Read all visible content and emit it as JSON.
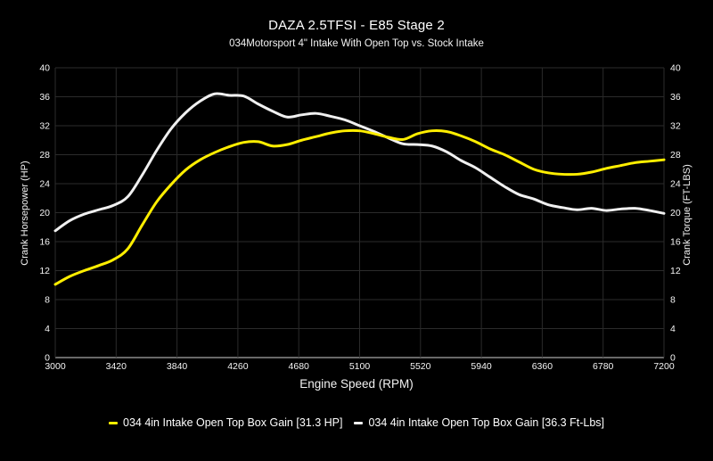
{
  "chart_data": {
    "type": "line",
    "title": "DAZA 2.5TFSI - E85 Stage 2",
    "subtitle": "034Motorsport 4\" Intake With Open Top vs. Stock Intake",
    "xlabel": "Engine Speed (RPM)",
    "ylabel_left": "Crank Horsepower (HP)",
    "ylabel_right": "Crank Torque (FT-LBS)",
    "xlim": [
      3000,
      7200
    ],
    "ylim": [
      0,
      40
    ],
    "x_ticks": [
      3000,
      3420,
      3840,
      4260,
      4680,
      5100,
      5520,
      5940,
      6360,
      6780,
      7200
    ],
    "y_ticks": [
      0,
      4,
      8,
      12,
      16,
      20,
      24,
      28,
      32,
      36,
      40
    ],
    "grid": true,
    "legend_position": "bottom",
    "colors": {
      "background": "#000000",
      "grid": "#2b2b2b",
      "axis": "#8c8c8c",
      "text": "#f5f5f5",
      "series_hp": "#ffee00",
      "series_tq": "#f0f0f0"
    },
    "x": [
      3000,
      3100,
      3200,
      3300,
      3400,
      3500,
      3600,
      3700,
      3800,
      3900,
      4000,
      4100,
      4200,
      4300,
      4400,
      4500,
      4600,
      4700,
      4800,
      4900,
      5000,
      5100,
      5200,
      5300,
      5400,
      5500,
      5600,
      5700,
      5800,
      5900,
      6000,
      6100,
      6200,
      6300,
      6400,
      6500,
      6600,
      6700,
      6800,
      6900,
      7000,
      7100,
      7200
    ],
    "series": [
      {
        "name": "034 4in Intake Open Top Box Gain [31.3 HP]",
        "peak_label": "31.3 HP",
        "color": "#ffee00",
        "axis": "left",
        "values": [
          10.1,
          11.2,
          12.0,
          12.7,
          13.5,
          15.0,
          18.3,
          21.5,
          23.9,
          25.9,
          27.3,
          28.3,
          29.1,
          29.7,
          29.8,
          29.2,
          29.4,
          30.0,
          30.5,
          31.0,
          31.3,
          31.3,
          30.9,
          30.4,
          30.1,
          30.9,
          31.3,
          31.2,
          30.6,
          29.8,
          28.8,
          28.0,
          27.0,
          26.0,
          25.5,
          25.3,
          25.3,
          25.6,
          26.1,
          26.5,
          26.9,
          27.1,
          27.3
        ]
      },
      {
        "name": "034 4in Intake Open Top Box Gain [36.3 Ft-Lbs]",
        "peak_label": "36.3 Ft-Lbs",
        "color": "#f0f0f0",
        "axis": "right",
        "values": [
          17.5,
          18.9,
          19.8,
          20.4,
          21.0,
          22.2,
          25.2,
          28.6,
          31.6,
          33.8,
          35.4,
          36.4,
          36.2,
          36.1,
          35.0,
          34.0,
          33.2,
          33.5,
          33.7,
          33.3,
          32.8,
          32.0,
          31.2,
          30.3,
          29.5,
          29.4,
          29.2,
          28.4,
          27.2,
          26.2,
          24.9,
          23.6,
          22.5,
          21.9,
          21.1,
          20.7,
          20.4,
          20.6,
          20.3,
          20.5,
          20.6,
          20.3,
          19.9
        ]
      }
    ]
  }
}
